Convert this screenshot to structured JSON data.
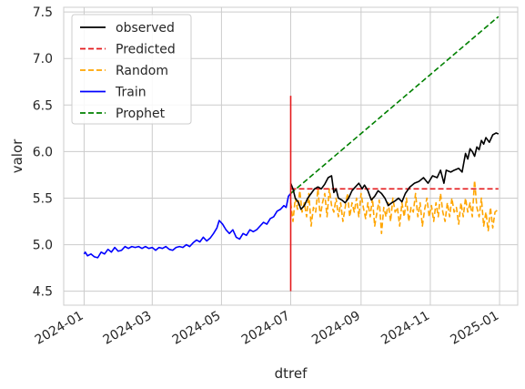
{
  "chart_data": {
    "type": "line",
    "xlabel": "dtref",
    "ylabel": "valor",
    "x_axis_type": "date",
    "xlim": [
      "2023-12-14",
      "2025-01-17"
    ],
    "ylim": [
      4.35,
      7.55
    ],
    "x_ticks": [
      "2024-01-01",
      "2024-03-01",
      "2024-05-01",
      "2024-07-01",
      "2024-09-01",
      "2024-11-01",
      "2025-01-01"
    ],
    "x_tick_labels": [
      "2024-01",
      "2024-03",
      "2024-05",
      "2024-07",
      "2024-09",
      "2024-11",
      "2025-01"
    ],
    "y_ticks": [
      4.5,
      5.0,
      5.5,
      6.0,
      6.5,
      7.0,
      7.5
    ],
    "y_tick_labels": [
      "4.5",
      "5.0",
      "5.5",
      "6.0",
      "6.5",
      "7.0",
      "7.5"
    ],
    "grid": true,
    "legend_position": "top-left",
    "vline": {
      "x": "2024-07-01",
      "y": [
        4.5,
        6.6
      ],
      "color": "#e41a1c"
    },
    "series": [
      {
        "name": "observed",
        "color": "#000000",
        "dash": "solid",
        "points": [
          [
            "2024-07-01",
            5.66
          ],
          [
            "2024-07-03",
            5.6
          ],
          [
            "2024-07-05",
            5.5
          ],
          [
            "2024-07-08",
            5.45
          ],
          [
            "2024-07-10",
            5.38
          ],
          [
            "2024-07-13",
            5.42
          ],
          [
            "2024-07-16",
            5.5
          ],
          [
            "2024-07-19",
            5.55
          ],
          [
            "2024-07-22",
            5.6
          ],
          [
            "2024-07-25",
            5.62
          ],
          [
            "2024-07-28",
            5.6
          ],
          [
            "2024-07-31",
            5.65
          ],
          [
            "2024-08-03",
            5.72
          ],
          [
            "2024-08-06",
            5.74
          ],
          [
            "2024-08-08",
            5.56
          ],
          [
            "2024-08-10",
            5.6
          ],
          [
            "2024-08-12",
            5.5
          ],
          [
            "2024-08-15",
            5.48
          ],
          [
            "2024-08-18",
            5.45
          ],
          [
            "2024-08-21",
            5.5
          ],
          [
            "2024-08-24",
            5.58
          ],
          [
            "2024-08-27",
            5.62
          ],
          [
            "2024-08-30",
            5.66
          ],
          [
            "2024-09-02",
            5.6
          ],
          [
            "2024-09-04",
            5.64
          ],
          [
            "2024-09-07",
            5.58
          ],
          [
            "2024-09-10",
            5.48
          ],
          [
            "2024-09-13",
            5.52
          ],
          [
            "2024-09-16",
            5.58
          ],
          [
            "2024-09-19",
            5.55
          ],
          [
            "2024-09-22",
            5.5
          ],
          [
            "2024-09-25",
            5.42
          ],
          [
            "2024-09-28",
            5.45
          ],
          [
            "2024-10-01",
            5.47
          ],
          [
            "2024-10-04",
            5.5
          ],
          [
            "2024-10-07",
            5.46
          ],
          [
            "2024-10-10",
            5.55
          ],
          [
            "2024-10-14",
            5.62
          ],
          [
            "2024-10-18",
            5.66
          ],
          [
            "2024-10-22",
            5.68
          ],
          [
            "2024-10-26",
            5.72
          ],
          [
            "2024-10-30",
            5.66
          ],
          [
            "2024-11-03",
            5.74
          ],
          [
            "2024-11-07",
            5.72
          ],
          [
            "2024-11-10",
            5.8
          ],
          [
            "2024-11-13",
            5.66
          ],
          [
            "2024-11-15",
            5.8
          ],
          [
            "2024-11-19",
            5.78
          ],
          [
            "2024-11-22",
            5.8
          ],
          [
            "2024-11-26",
            5.82
          ],
          [
            "2024-11-29",
            5.78
          ],
          [
            "2024-12-02",
            5.98
          ],
          [
            "2024-12-04",
            5.92
          ],
          [
            "2024-12-06",
            6.03
          ],
          [
            "2024-12-08",
            6.0
          ],
          [
            "2024-12-10",
            5.95
          ],
          [
            "2024-12-12",
            6.05
          ],
          [
            "2024-12-14",
            6.02
          ],
          [
            "2024-12-16",
            6.12
          ],
          [
            "2024-12-18",
            6.08
          ],
          [
            "2024-12-20",
            6.15
          ],
          [
            "2024-12-23",
            6.1
          ],
          [
            "2024-12-26",
            6.18
          ],
          [
            "2024-12-29",
            6.2
          ],
          [
            "2024-12-31",
            6.19
          ]
        ]
      },
      {
        "name": "Predicted",
        "color": "#e41a1c",
        "dash": "dashed",
        "points": [
          [
            "2024-07-01",
            5.6
          ],
          [
            "2024-12-31",
            5.6
          ]
        ]
      },
      {
        "name": "Random",
        "color": "#ffa500",
        "dash": "dashed",
        "points": [
          [
            "2024-07-01",
            5.45
          ],
          [
            "2024-07-03",
            5.25
          ],
          [
            "2024-07-05",
            5.5
          ],
          [
            "2024-07-07",
            5.38
          ],
          [
            "2024-07-09",
            5.58
          ],
          [
            "2024-07-11",
            5.35
          ],
          [
            "2024-07-13",
            5.45
          ],
          [
            "2024-07-15",
            5.3
          ],
          [
            "2024-07-17",
            5.55
          ],
          [
            "2024-07-19",
            5.2
          ],
          [
            "2024-07-21",
            5.4
          ],
          [
            "2024-07-23",
            5.35
          ],
          [
            "2024-07-25",
            5.6
          ],
          [
            "2024-07-27",
            5.3
          ],
          [
            "2024-07-29",
            5.45
          ],
          [
            "2024-07-31",
            5.55
          ],
          [
            "2024-08-02",
            5.3
          ],
          [
            "2024-08-04",
            5.6
          ],
          [
            "2024-08-06",
            5.42
          ],
          [
            "2024-08-08",
            5.35
          ],
          [
            "2024-08-10",
            5.5
          ],
          [
            "2024-08-12",
            5.3
          ],
          [
            "2024-08-14",
            5.45
          ],
          [
            "2024-08-16",
            5.25
          ],
          [
            "2024-08-18",
            5.4
          ],
          [
            "2024-08-20",
            5.55
          ],
          [
            "2024-08-22",
            5.3
          ],
          [
            "2024-08-24",
            5.45
          ],
          [
            "2024-08-26",
            5.35
          ],
          [
            "2024-08-28",
            5.5
          ],
          [
            "2024-08-30",
            5.3
          ],
          [
            "2024-09-01",
            5.55
          ],
          [
            "2024-09-03",
            5.4
          ],
          [
            "2024-09-05",
            5.28
          ],
          [
            "2024-09-07",
            5.45
          ],
          [
            "2024-09-09",
            5.3
          ],
          [
            "2024-09-11",
            5.5
          ],
          [
            "2024-09-13",
            5.2
          ],
          [
            "2024-09-15",
            5.35
          ],
          [
            "2024-09-17",
            5.48
          ],
          [
            "2024-09-19",
            5.12
          ],
          [
            "2024-09-21",
            5.4
          ],
          [
            "2024-09-23",
            5.3
          ],
          [
            "2024-09-25",
            5.45
          ],
          [
            "2024-09-27",
            5.25
          ],
          [
            "2024-09-29",
            5.5
          ],
          [
            "2024-10-01",
            5.35
          ],
          [
            "2024-10-03",
            5.4
          ],
          [
            "2024-10-05",
            5.2
          ],
          [
            "2024-10-07",
            5.45
          ],
          [
            "2024-10-09",
            5.3
          ],
          [
            "2024-10-11",
            5.5
          ],
          [
            "2024-10-13",
            5.25
          ],
          [
            "2024-10-15",
            5.4
          ],
          [
            "2024-10-17",
            5.35
          ],
          [
            "2024-10-19",
            5.55
          ],
          [
            "2024-10-21",
            5.3
          ],
          [
            "2024-10-23",
            5.45
          ],
          [
            "2024-10-25",
            5.2
          ],
          [
            "2024-10-27",
            5.38
          ],
          [
            "2024-10-29",
            5.5
          ],
          [
            "2024-10-31",
            5.3
          ],
          [
            "2024-11-02",
            5.42
          ],
          [
            "2024-11-04",
            5.25
          ],
          [
            "2024-11-06",
            5.45
          ],
          [
            "2024-11-08",
            5.3
          ],
          [
            "2024-11-10",
            5.55
          ],
          [
            "2024-11-12",
            5.35
          ],
          [
            "2024-11-14",
            5.25
          ],
          [
            "2024-11-16",
            5.45
          ],
          [
            "2024-11-18",
            5.3
          ],
          [
            "2024-11-20",
            5.5
          ],
          [
            "2024-11-22",
            5.35
          ],
          [
            "2024-11-24",
            5.4
          ],
          [
            "2024-11-26",
            5.22
          ],
          [
            "2024-11-28",
            5.45
          ],
          [
            "2024-11-30",
            5.3
          ],
          [
            "2024-12-02",
            5.5
          ],
          [
            "2024-12-04",
            5.35
          ],
          [
            "2024-12-06",
            5.45
          ],
          [
            "2024-12-08",
            5.3
          ],
          [
            "2024-12-10",
            5.69
          ],
          [
            "2024-12-12",
            5.4
          ],
          [
            "2024-12-14",
            5.3
          ],
          [
            "2024-12-16",
            5.5
          ],
          [
            "2024-12-18",
            5.2
          ],
          [
            "2024-12-20",
            5.35
          ],
          [
            "2024-12-22",
            5.15
          ],
          [
            "2024-12-24",
            5.4
          ],
          [
            "2024-12-26",
            5.18
          ],
          [
            "2024-12-28",
            5.35
          ],
          [
            "2024-12-31",
            5.38
          ]
        ]
      },
      {
        "name": "Train",
        "color": "#0000ff",
        "dash": "solid",
        "points": [
          [
            "2024-01-01",
            4.9
          ],
          [
            "2024-01-02",
            4.92
          ],
          [
            "2024-01-04",
            4.88
          ],
          [
            "2024-01-07",
            4.9
          ],
          [
            "2024-01-10",
            4.87
          ],
          [
            "2024-01-13",
            4.86
          ],
          [
            "2024-01-16",
            4.92
          ],
          [
            "2024-01-19",
            4.9
          ],
          [
            "2024-01-22",
            4.95
          ],
          [
            "2024-01-25",
            4.92
          ],
          [
            "2024-01-28",
            4.97
          ],
          [
            "2024-01-31",
            4.93
          ],
          [
            "2024-02-03",
            4.94
          ],
          [
            "2024-02-06",
            4.98
          ],
          [
            "2024-02-09",
            4.96
          ],
          [
            "2024-02-12",
            4.98
          ],
          [
            "2024-02-15",
            4.97
          ],
          [
            "2024-02-18",
            4.98
          ],
          [
            "2024-02-21",
            4.96
          ],
          [
            "2024-02-24",
            4.98
          ],
          [
            "2024-02-27",
            4.96
          ],
          [
            "2024-03-01",
            4.97
          ],
          [
            "2024-03-04",
            4.94
          ],
          [
            "2024-03-07",
            4.97
          ],
          [
            "2024-03-10",
            4.96
          ],
          [
            "2024-03-13",
            4.98
          ],
          [
            "2024-03-16",
            4.95
          ],
          [
            "2024-03-19",
            4.94
          ],
          [
            "2024-03-22",
            4.97
          ],
          [
            "2024-03-25",
            4.98
          ],
          [
            "2024-03-28",
            4.97
          ],
          [
            "2024-03-31",
            5.0
          ],
          [
            "2024-04-03",
            4.98
          ],
          [
            "2024-04-06",
            5.02
          ],
          [
            "2024-04-09",
            5.05
          ],
          [
            "2024-04-12",
            5.03
          ],
          [
            "2024-04-15",
            5.08
          ],
          [
            "2024-04-18",
            5.04
          ],
          [
            "2024-04-21",
            5.07
          ],
          [
            "2024-04-24",
            5.12
          ],
          [
            "2024-04-27",
            5.18
          ],
          [
            "2024-04-29",
            5.26
          ],
          [
            "2024-05-02",
            5.22
          ],
          [
            "2024-05-05",
            5.16
          ],
          [
            "2024-05-08",
            5.12
          ],
          [
            "2024-05-11",
            5.16
          ],
          [
            "2024-05-14",
            5.08
          ],
          [
            "2024-05-17",
            5.06
          ],
          [
            "2024-05-20",
            5.12
          ],
          [
            "2024-05-23",
            5.1
          ],
          [
            "2024-05-26",
            5.16
          ],
          [
            "2024-05-29",
            5.14
          ],
          [
            "2024-06-01",
            5.16
          ],
          [
            "2024-06-04",
            5.2
          ],
          [
            "2024-06-07",
            5.24
          ],
          [
            "2024-06-10",
            5.22
          ],
          [
            "2024-06-13",
            5.28
          ],
          [
            "2024-06-16",
            5.3
          ],
          [
            "2024-06-19",
            5.36
          ],
          [
            "2024-06-22",
            5.38
          ],
          [
            "2024-06-25",
            5.42
          ],
          [
            "2024-06-27",
            5.4
          ],
          [
            "2024-06-29",
            5.52
          ],
          [
            "2024-07-01",
            5.55
          ]
        ]
      },
      {
        "name": "Prophet",
        "color": "#008000",
        "dash": "dashed",
        "points": [
          [
            "2024-07-01",
            5.55
          ],
          [
            "2024-12-31",
            7.45
          ]
        ]
      }
    ]
  }
}
